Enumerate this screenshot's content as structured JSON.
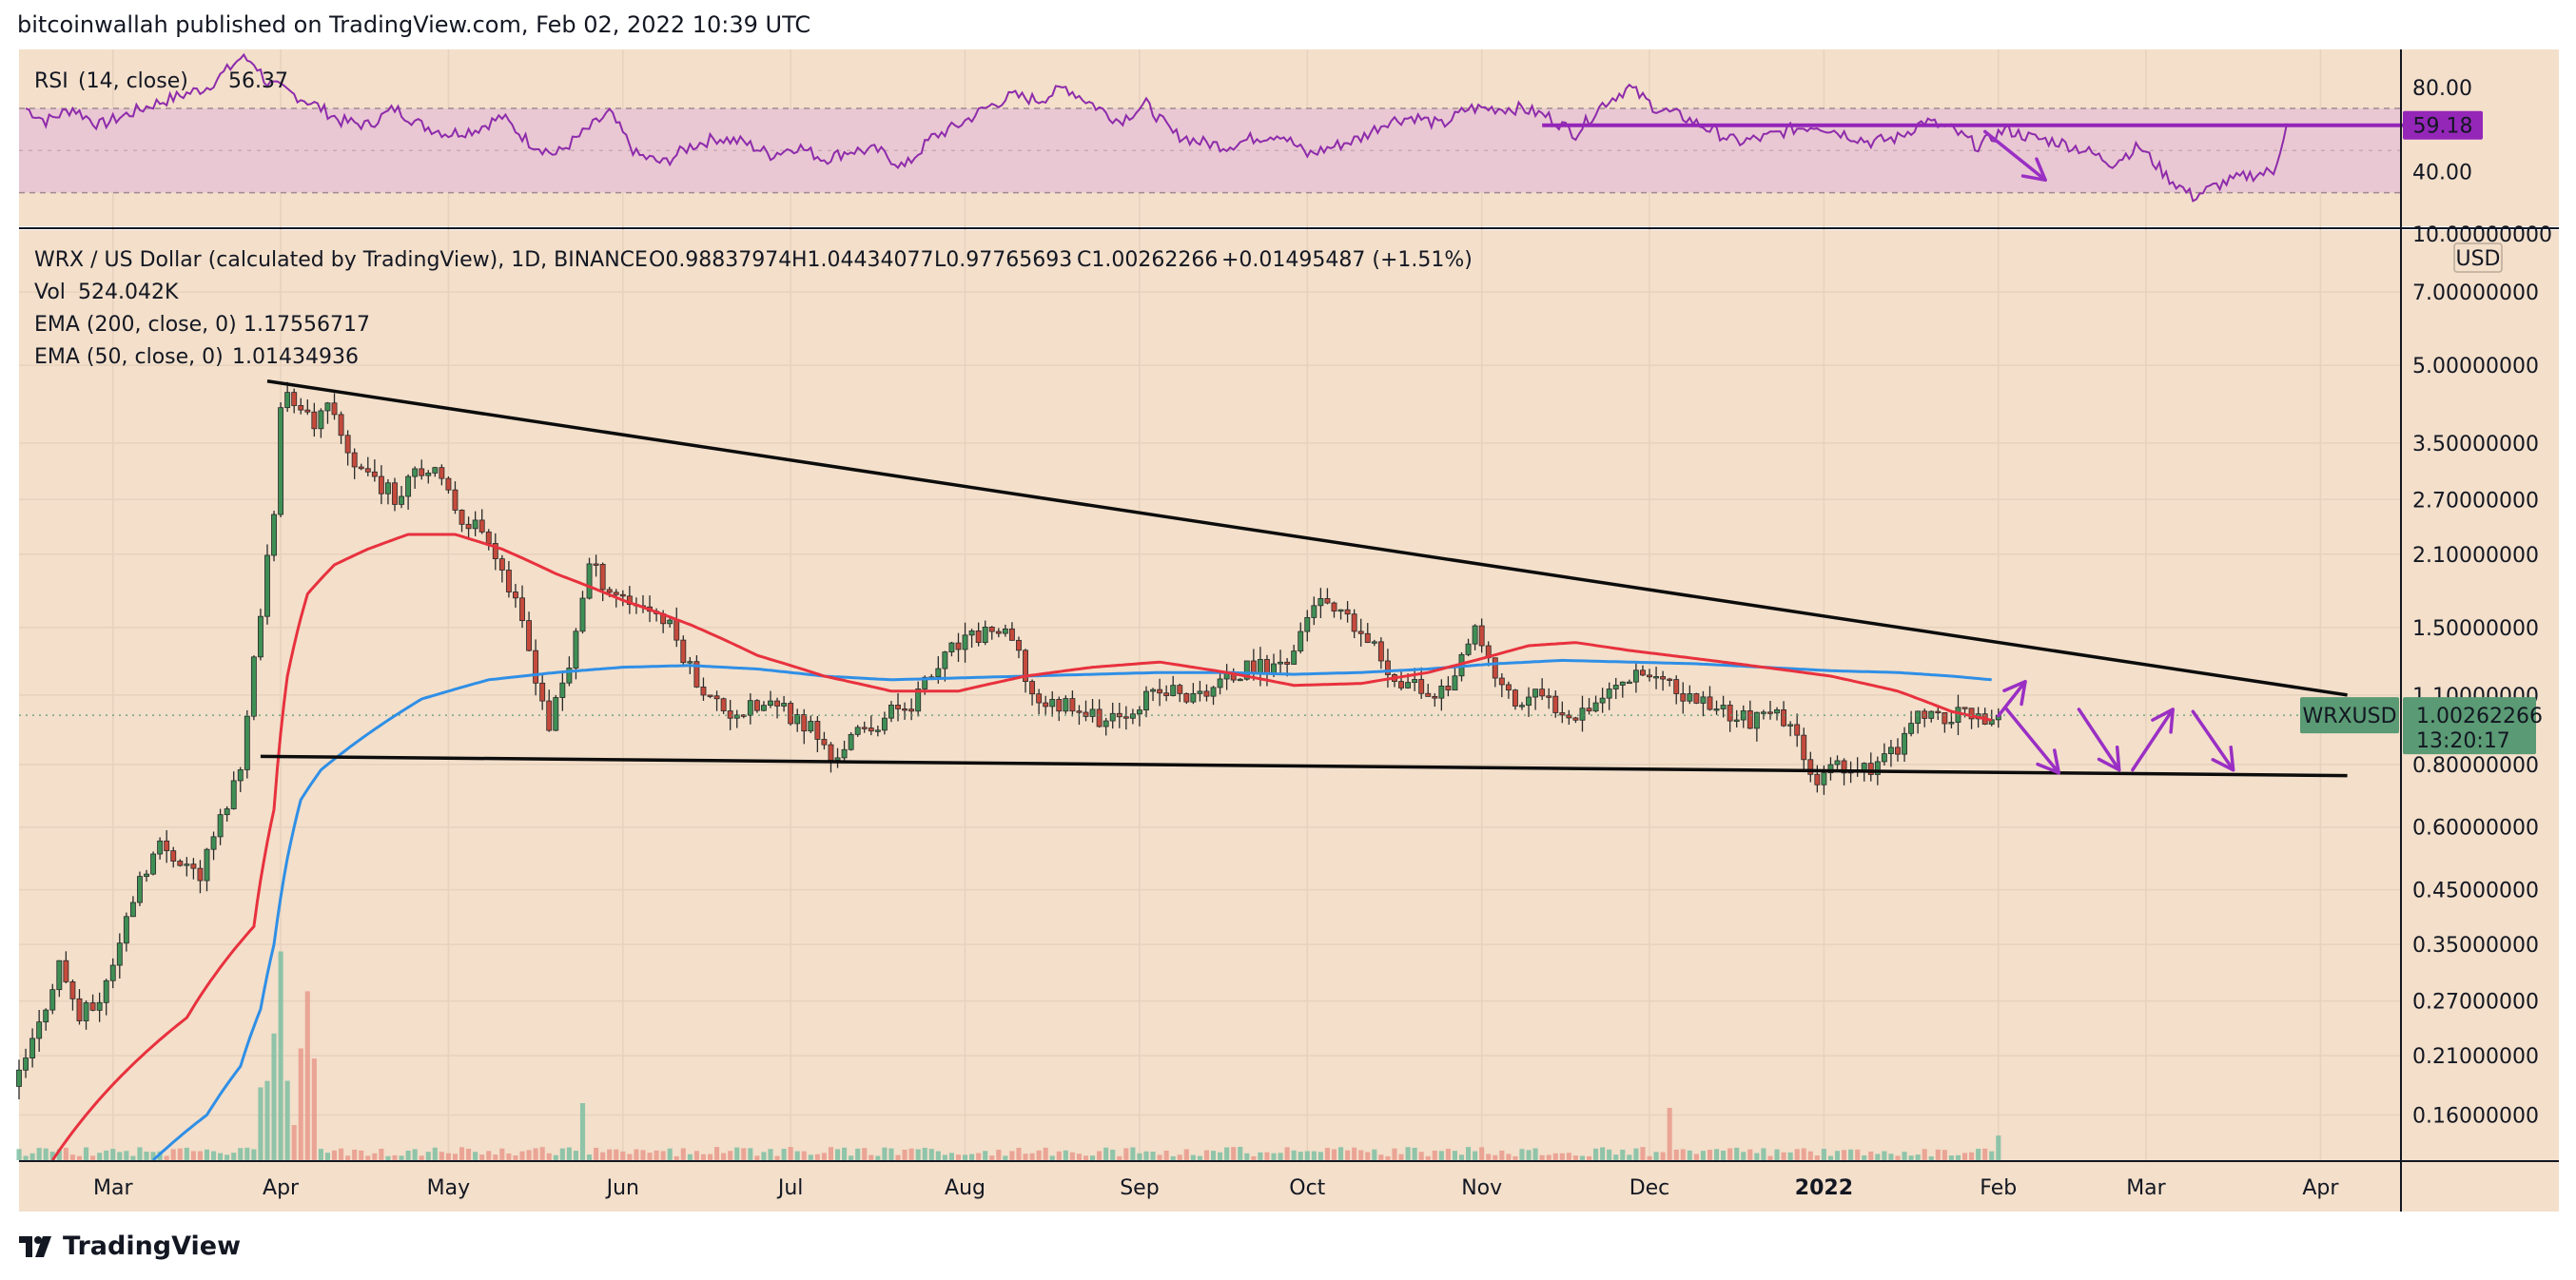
{
  "header": {
    "published_text": "bitcoinwallah published on TradingView.com, Feb 02, 2022 10:39 UTC"
  },
  "footer": {
    "brand": "TradingView"
  },
  "colors": {
    "background": "#f3dfca",
    "ema200": "#2f8fe6",
    "ema50": "#e8313e",
    "rsi": "#8e2bab",
    "rsi_band": "#e9c8d3",
    "up_candle": "#3f8f55",
    "down_candle": "#c54a3c",
    "trendline": "#0c0c0c",
    "arrow": "#9a2fc4",
    "price_label_bg": "#5a9a74",
    "rsi_label_bg": "#9426b8"
  },
  "chart_data": [
    {
      "type": "line",
      "title": "RSI (14, close)",
      "legend": {
        "name": "RSI",
        "params": "(14, close)",
        "value": "56.37"
      },
      "y_ticks": [
        "80.00",
        "40.00"
      ],
      "y_tick_values": [
        80,
        40
      ],
      "band": [
        30,
        70
      ],
      "midline": 50,
      "current_value_label": "59.18",
      "ylim": [
        14,
        98
      ],
      "series": [
        {
          "name": "RSI",
          "x": [
            1,
            4,
            8,
            12,
            16,
            20,
            24,
            28,
            31,
            33,
            35,
            37,
            40,
            44,
            48,
            52,
            56,
            60,
            64,
            68,
            72,
            76,
            80,
            84,
            88,
            92,
            96,
            100,
            104,
            108,
            112,
            116,
            120,
            124,
            128,
            132,
            136,
            140,
            144,
            148,
            152,
            156,
            160,
            164,
            168,
            172,
            176,
            180,
            184,
            188,
            192,
            196,
            200,
            204,
            208,
            212,
            216,
            220,
            224,
            228,
            232,
            236,
            240,
            244,
            248,
            252,
            256,
            260,
            264,
            268,
            272,
            276,
            280,
            284,
            288,
            292,
            296,
            300,
            304,
            308,
            312,
            316,
            320,
            324,
            328,
            332,
            336,
            338
          ],
          "y": [
            70,
            64,
            70,
            62,
            67,
            72,
            76,
            80,
            88,
            94,
            92,
            82,
            78,
            72,
            64,
            62,
            70,
            62,
            58,
            60,
            66,
            54,
            48,
            58,
            68,
            48,
            44,
            52,
            56,
            54,
            48,
            52,
            46,
            50,
            50,
            42,
            56,
            62,
            70,
            76,
            74,
            80,
            72,
            64,
            72,
            58,
            54,
            52,
            56,
            58,
            48,
            52,
            56,
            64,
            66,
            62,
            70,
            70,
            70,
            66,
            58,
            72,
            80,
            70,
            66,
            60,
            54,
            56,
            60,
            62,
            58,
            54,
            56,
            64,
            60,
            52,
            60,
            56,
            54,
            50,
            44,
            52,
            38,
            28,
            34,
            38,
            40,
            62
          ]
        }
      ],
      "overlay_line": {
        "label": "RSI resistance",
        "value": 62.0,
        "x_start": 227,
        "x_end": 363
      },
      "overlay_arrow": {
        "from": [
          293,
          59
        ],
        "to": [
          302,
          36
        ]
      }
    },
    {
      "type": "candlestick",
      "legend_title": "WRX / US Dollar (calculated by TradingView), 1D, BINANCE",
      "ohlc_text": {
        "o": "O0.98837974",
        "h": "H1.04434077",
        "l": "L0.97765693",
        "c": "C1.00262266",
        "chg": "+0.01495487 (+1.51%)"
      },
      "volume_label": {
        "name": "Vol",
        "value": "524.042K"
      },
      "ema_labels": [
        {
          "name": "EMA (200, close, 0)",
          "value": "1.17556717"
        },
        {
          "name": "EMA (50, close, 0)",
          "value": "1.01434936"
        }
      ],
      "scale": "log",
      "ylim": [
        0.13,
        9.3
      ],
      "currency": "USD",
      "y_ticks": [
        "7.00000000",
        "5.00000000",
        "3.50000000",
        "2.70000000",
        "2.10000000",
        "1.50000000",
        "1.10000000",
        "0.80000000",
        "0.60000000",
        "0.45000000",
        "0.35000000",
        "0.27000000",
        "0.21000000",
        "0.16000000"
      ],
      "y_tick_values": [
        7.0,
        5.0,
        3.5,
        2.7,
        2.1,
        1.5,
        1.1,
        0.8,
        0.6,
        0.45,
        0.35,
        0.27,
        0.21,
        0.16
      ],
      "top_clipped_tick": "10.00000000",
      "x_labels": [
        "Mar",
        "Apr",
        "May",
        "Jun",
        "Jul",
        "Aug",
        "Sep",
        "Oct",
        "Nov",
        "Dec",
        "2022",
        "Feb",
        "Mar",
        "Apr"
      ],
      "x_label_days": [
        14,
        39,
        64,
        90,
        115,
        141,
        167,
        192,
        218,
        243,
        269,
        295,
        317,
        343
      ],
      "x_range_days": [
        0,
        355
      ],
      "symbol_label": "WRXUSD",
      "last_price_label": "1.00262266",
      "countdown_label": "13:20:17",
      "last_price": 1.00262266,
      "close_path": {
        "days": [
          0,
          3,
          6,
          9,
          12,
          15,
          18,
          21,
          24,
          27,
          30,
          33,
          36,
          38,
          39,
          40,
          41,
          42,
          44,
          46,
          48,
          50,
          53,
          56,
          59,
          62,
          66,
          70,
          73,
          76,
          79,
          82,
          85,
          88,
          91,
          94,
          97,
          100,
          103,
          106,
          109,
          112,
          115,
          118,
          121,
          124,
          127,
          130,
          133,
          136,
          139,
          142,
          145,
          148,
          151,
          154,
          157,
          160,
          163,
          166,
          169,
          172,
          175,
          178,
          181,
          184,
          187,
          190,
          193,
          196,
          199,
          202,
          205,
          208,
          211,
          214,
          217,
          220,
          223,
          226,
          229,
          232,
          235,
          238,
          241,
          244,
          247,
          250,
          253,
          256,
          259,
          262,
          265,
          268,
          271,
          274,
          277,
          280,
          283,
          286,
          289,
          292,
          295
        ],
        "close": [
          0.19,
          0.24,
          0.32,
          0.25,
          0.27,
          0.35,
          0.48,
          0.55,
          0.52,
          0.48,
          0.62,
          0.79,
          1.55,
          2.6,
          4.0,
          4.3,
          4.0,
          4.2,
          3.8,
          4.1,
          3.6,
          3.2,
          3.0,
          2.7,
          3.2,
          3.0,
          2.5,
          2.3,
          1.8,
          1.35,
          0.95,
          1.25,
          2.0,
          1.8,
          1.7,
          1.65,
          1.5,
          1.25,
          1.08,
          1.02,
          1.03,
          1.05,
          1.0,
          0.95,
          0.82,
          0.9,
          0.95,
          1.02,
          1.07,
          1.2,
          1.35,
          1.42,
          1.5,
          1.4,
          1.1,
          1.05,
          1.07,
          1.0,
          0.97,
          1.05,
          1.1,
          1.12,
          1.08,
          1.15,
          1.2,
          1.25,
          1.25,
          1.35,
          1.7,
          1.6,
          1.5,
          1.35,
          1.2,
          1.15,
          1.1,
          1.2,
          1.45,
          1.2,
          1.05,
          1.1,
          1.05,
          1.02,
          1.08,
          1.15,
          1.25,
          1.2,
          1.1,
          1.08,
          1.05,
          1.0,
          0.98,
          1.0,
          0.9,
          0.75,
          0.78,
          0.79,
          0.8,
          0.87,
          1.0,
          1.0,
          1.0,
          1.0,
          1.0
        ]
      },
      "ema50_path": {
        "days": [
          5,
          15,
          25,
          35,
          38,
          40,
          43,
          47,
          52,
          58,
          65,
          72,
          80,
          90,
          100,
          110,
          120,
          130,
          140,
          150,
          160,
          170,
          180,
          190,
          200,
          210,
          218,
          225,
          232,
          240,
          250,
          260,
          270,
          280,
          288,
          294
        ],
        "values": [
          0.13,
          0.19,
          0.25,
          0.38,
          0.65,
          1.2,
          1.75,
          2.0,
          2.15,
          2.3,
          2.3,
          2.15,
          1.92,
          1.7,
          1.52,
          1.32,
          1.2,
          1.12,
          1.12,
          1.2,
          1.25,
          1.28,
          1.22,
          1.15,
          1.16,
          1.22,
          1.3,
          1.38,
          1.4,
          1.35,
          1.3,
          1.25,
          1.2,
          1.12,
          1.02,
          0.98
        ]
      },
      "ema200_path": {
        "days": [
          20,
          28,
          33,
          36,
          38,
          40,
          42,
          45,
          50,
          55,
          60,
          70,
          80,
          90,
          100,
          110,
          120,
          130,
          140,
          150,
          160,
          170,
          180,
          190,
          200,
          210,
          220,
          230,
          240,
          250,
          260,
          270,
          280,
          288,
          294
        ],
        "values": [
          0.13,
          0.16,
          0.2,
          0.26,
          0.35,
          0.52,
          0.68,
          0.78,
          0.88,
          0.98,
          1.08,
          1.18,
          1.22,
          1.25,
          1.26,
          1.24,
          1.2,
          1.18,
          1.19,
          1.2,
          1.21,
          1.22,
          1.22,
          1.21,
          1.22,
          1.24,
          1.27,
          1.29,
          1.28,
          1.27,
          1.25,
          1.23,
          1.22,
          1.2,
          1.18
        ]
      },
      "trendlines": [
        {
          "name": "upper",
          "days": [
            37,
            347
          ],
          "values": [
            4.65,
            1.1
          ]
        },
        {
          "name": "lower",
          "days": [
            36,
            347
          ],
          "values": [
            0.83,
            0.76
          ]
        }
      ],
      "scenario_arrows": [
        {
          "days": [
            295,
            299
          ],
          "values": [
            1.0,
            1.17
          ]
        },
        {
          "days": [
            296,
            304
          ],
          "values": [
            1.04,
            0.77
          ]
        },
        {
          "days": [
            307,
            313
          ],
          "values": [
            1.03,
            0.78
          ]
        },
        {
          "days": [
            315,
            321
          ],
          "values": [
            0.78,
            1.03
          ]
        },
        {
          "days": [
            324,
            330
          ],
          "values": [
            1.02,
            0.78
          ]
        }
      ]
    }
  ]
}
